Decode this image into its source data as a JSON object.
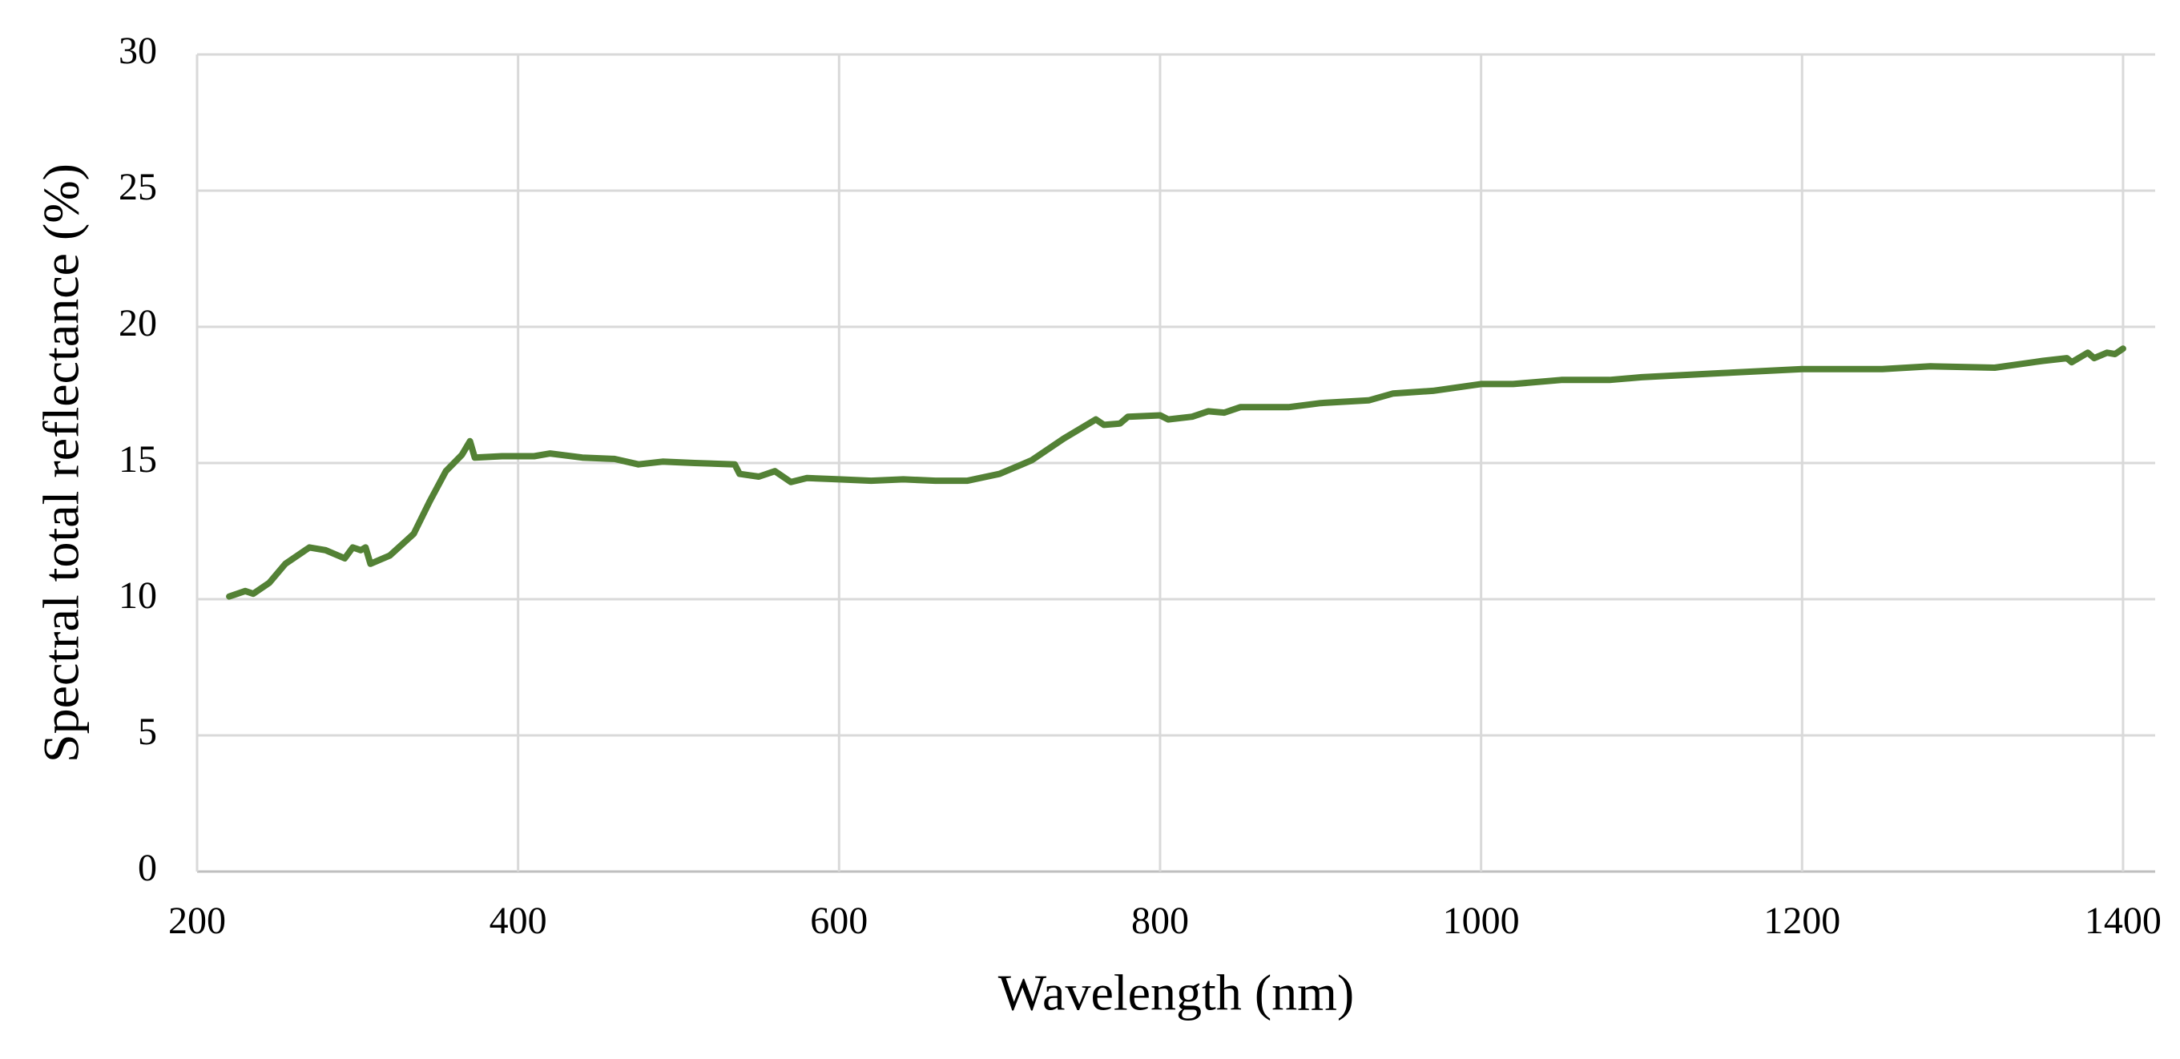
{
  "chart_data": {
    "type": "line",
    "x_label": "Wavelength (nm)",
    "y_label": "Spectral total reflectance (%)",
    "x": [
      220,
      230,
      235,
      245,
      255,
      270,
      280,
      292,
      297,
      302,
      305,
      308,
      320,
      335,
      345,
      355,
      365,
      370,
      373,
      390,
      410,
      420,
      440,
      460,
      475,
      490,
      510,
      535,
      538,
      550,
      560,
      570,
      580,
      600,
      620,
      640,
      660,
      680,
      700,
      720,
      740,
      760,
      765,
      775,
      780,
      800,
      805,
      820,
      830,
      840,
      850,
      880,
      900,
      930,
      945,
      970,
      1000,
      1020,
      1050,
      1080,
      1100,
      1150,
      1200,
      1250,
      1280,
      1320,
      1350,
      1365,
      1368,
      1378,
      1382,
      1390,
      1395,
      1400
    ],
    "values": [
      10.1,
      10.3,
      10.2,
      10.6,
      11.3,
      11.9,
      11.8,
      11.5,
      11.9,
      11.8,
      11.9,
      11.3,
      11.6,
      12.4,
      13.6,
      14.7,
      15.3,
      15.8,
      15.2,
      15.25,
      15.25,
      15.35,
      15.2,
      15.15,
      14.95,
      15.05,
      15.0,
      14.95,
      14.6,
      14.5,
      14.7,
      14.3,
      14.45,
      14.4,
      14.35,
      14.4,
      14.35,
      14.35,
      14.6,
      15.1,
      15.9,
      16.6,
      16.4,
      16.45,
      16.7,
      16.75,
      16.6,
      16.7,
      16.9,
      16.85,
      17.05,
      17.05,
      17.2,
      17.3,
      17.55,
      17.65,
      17.9,
      17.9,
      18.05,
      18.05,
      18.15,
      18.3,
      18.45,
      18.45,
      18.55,
      18.5,
      18.75,
      18.85,
      18.7,
      19.05,
      18.85,
      19.05,
      19.0,
      19.2
    ],
    "color": "#538135",
    "xlim": [
      200,
      1420
    ],
    "xticks": [
      200,
      400,
      600,
      800,
      1000,
      1200,
      1400
    ],
    "ylim": [
      0,
      30
    ],
    "yticks": [
      0,
      5,
      10,
      15,
      20,
      25,
      30
    ],
    "grid": true
  }
}
